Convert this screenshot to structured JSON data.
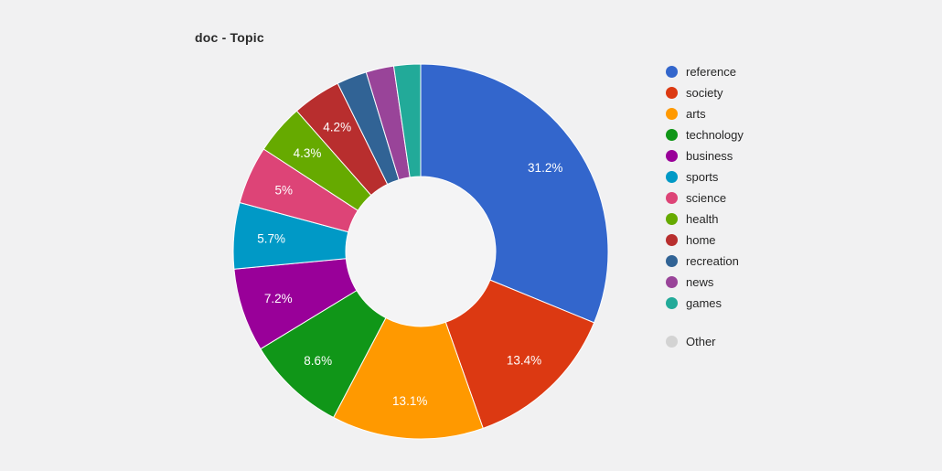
{
  "page": {
    "background_color": "#F1F1F2",
    "hole_color": "#F4F4F5",
    "slice_separator_color": "#ffffff",
    "label_text_color": "#ffffff"
  },
  "chart_data": {
    "type": "pie",
    "subtype": "donut",
    "title": "doc - Topic",
    "hole_ratio": 0.4,
    "legend_position": "right",
    "start_angle_deg": 0,
    "direction": "clockwise",
    "slices": [
      {
        "name": "reference",
        "value": 31.2,
        "text": "31.2%",
        "color": "#3366CC"
      },
      {
        "name": "society",
        "value": 13.4,
        "text": "13.4%",
        "color": "#DC3912"
      },
      {
        "name": "arts",
        "value": 13.1,
        "text": "13.1%",
        "color": "#FF9900"
      },
      {
        "name": "technology",
        "value": 8.6,
        "text": "8.6%",
        "color": "#109618"
      },
      {
        "name": "business",
        "value": 7.2,
        "text": "7.2%",
        "color": "#990099"
      },
      {
        "name": "sports",
        "value": 5.7,
        "text": "5.7%",
        "color": "#0099C6"
      },
      {
        "name": "science",
        "value": 5.0,
        "text": "5%",
        "color": "#DD4477"
      },
      {
        "name": "health",
        "value": 4.3,
        "text": "4.3%",
        "color": "#66AA00"
      },
      {
        "name": "home",
        "value": 4.2,
        "text": "4.2%",
        "color": "#B82E2E"
      },
      {
        "name": "recreation",
        "value": 2.6,
        "text": "",
        "color": "#316395"
      },
      {
        "name": "news",
        "value": 2.4,
        "text": "",
        "color": "#994499"
      },
      {
        "name": "games",
        "value": 2.3,
        "text": "",
        "color": "#22AA99"
      }
    ],
    "other": {
      "label": "Other",
      "color": "#D3D3D3"
    }
  }
}
